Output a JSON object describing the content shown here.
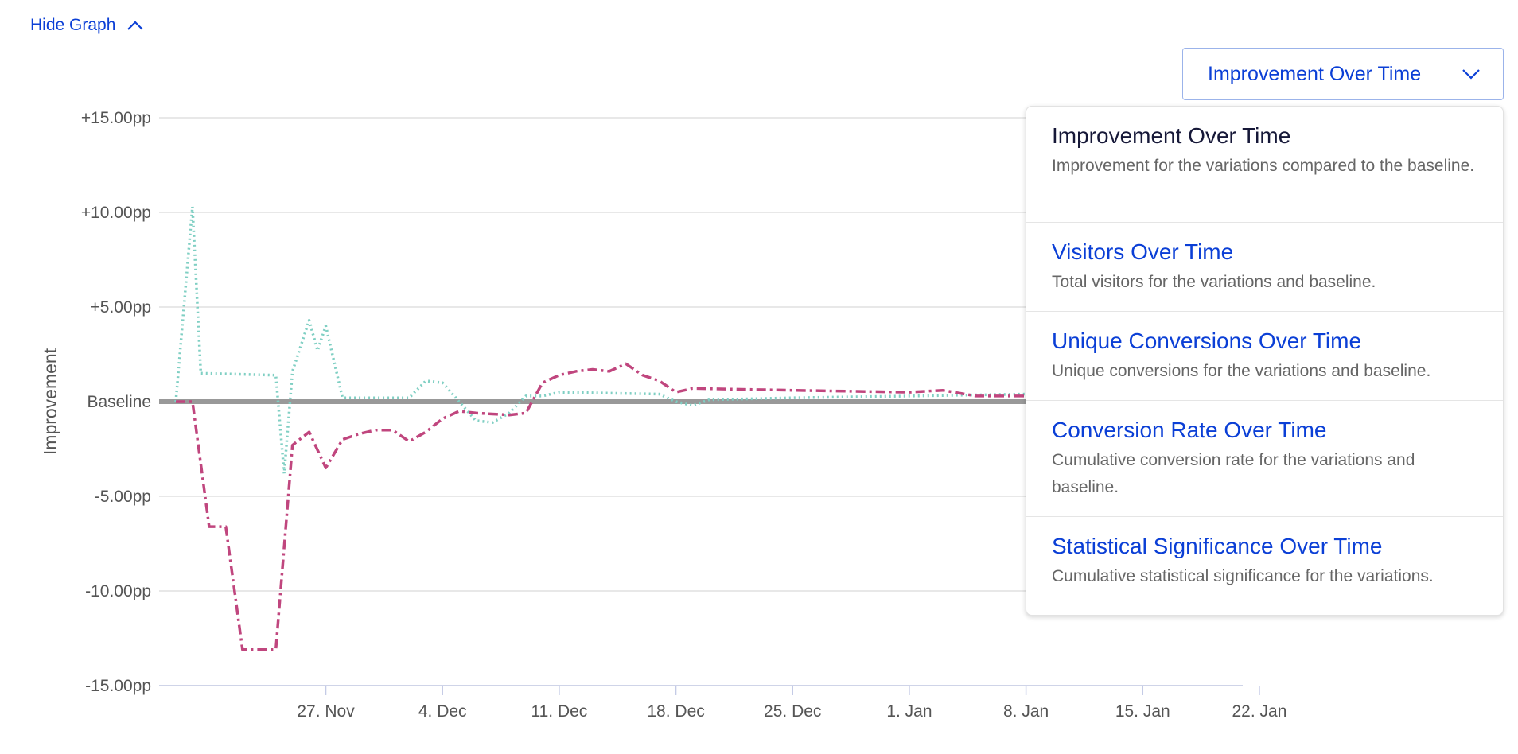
{
  "toggle": {
    "label": "Hide Graph",
    "icon": "chevron-up-icon"
  },
  "selector": {
    "value": "Improvement Over Time",
    "icon": "chevron-down-icon"
  },
  "menu": {
    "items": [
      {
        "title": "Improvement Over Time",
        "description": "Improvement for the variations compared to the baseline.",
        "selected": true
      },
      {
        "title": "Visitors Over Time",
        "description": "Total visitors for the variations and baseline.",
        "selected": false
      },
      {
        "title": "Unique Conversions Over Time",
        "description": "Unique conversions for the variations and baseline.",
        "selected": false
      },
      {
        "title": "Conversion Rate Over Time",
        "description": "Cumulative conversion rate for the variations and baseline.",
        "selected": false
      },
      {
        "title": "Statistical Significance Over Time",
        "description": "Cumulative statistical significance for the variations.",
        "selected": false
      }
    ]
  },
  "chart_data": {
    "type": "line",
    "ylabel": "Improvement",
    "xlabel": "",
    "ylim": [
      -15,
      15
    ],
    "y_ticks": [
      {
        "value": 15,
        "label": "+15.00pp"
      },
      {
        "value": 10,
        "label": "+10.00pp"
      },
      {
        "value": 5,
        "label": "+5.00pp"
      },
      {
        "value": 0,
        "label": "Baseline"
      },
      {
        "value": -5,
        "label": "-5.00pp"
      },
      {
        "value": -10,
        "label": "-10.00pp"
      },
      {
        "value": -15,
        "label": "-15.00pp"
      }
    ],
    "x_range": [
      "2023-11-17",
      "2024-01-21"
    ],
    "x_ticks": [
      {
        "date": "2023-11-27",
        "label": "27. Nov"
      },
      {
        "date": "2023-12-04",
        "label": "4. Dec"
      },
      {
        "date": "2023-12-11",
        "label": "11. Dec"
      },
      {
        "date": "2023-12-18",
        "label": "18. Dec"
      },
      {
        "date": "2023-12-25",
        "label": "25. Dec"
      },
      {
        "date": "2024-01-01",
        "label": "1. Jan"
      },
      {
        "date": "2024-01-08",
        "label": "8. Jan"
      },
      {
        "date": "2024-01-15",
        "label": "15. Jan"
      },
      {
        "date": "2024-01-22",
        "label": "22. Jan"
      }
    ],
    "grid": true,
    "baseline": {
      "value": 0,
      "color": "#999999"
    },
    "series": [
      {
        "color": "#7fcfc3",
        "dash": "dotted",
        "points": [
          [
            "2023-11-18",
            0.0
          ],
          [
            "2023-11-19",
            10.3
          ],
          [
            "2023-11-19T12",
            1.5
          ],
          [
            "2023-11-24",
            1.4
          ],
          [
            "2023-11-24T12",
            -3.8
          ],
          [
            "2023-11-25",
            1.6
          ],
          [
            "2023-11-26",
            4.3
          ],
          [
            "2023-11-26T12",
            2.7
          ],
          [
            "2023-11-27",
            4.0
          ],
          [
            "2023-11-28",
            0.2
          ],
          [
            "2023-12-02",
            0.2
          ],
          [
            "2023-12-03",
            1.1
          ],
          [
            "2023-12-04",
            1.0
          ],
          [
            "2023-12-06",
            -1.0
          ],
          [
            "2023-12-07",
            -1.1
          ],
          [
            "2023-12-08",
            -0.6
          ],
          [
            "2023-12-09",
            0.3
          ],
          [
            "2023-12-10",
            0.3
          ],
          [
            "2023-12-11",
            0.5
          ],
          [
            "2023-12-17",
            0.4
          ],
          [
            "2023-12-18",
            0.0
          ],
          [
            "2023-12-19",
            -0.2
          ],
          [
            "2023-12-20",
            0.1
          ],
          [
            "2023-12-25",
            0.2
          ],
          [
            "2024-01-01",
            0.3
          ],
          [
            "2024-01-08",
            0.4
          ]
        ]
      },
      {
        "color": "#c0467e",
        "dash": "dash-dot",
        "points": [
          [
            "2023-11-18",
            0.0
          ],
          [
            "2023-11-19",
            0.0
          ],
          [
            "2023-11-20",
            -6.6
          ],
          [
            "2023-11-21",
            -6.6
          ],
          [
            "2023-11-22",
            -13.1
          ],
          [
            "2023-11-24",
            -13.1
          ],
          [
            "2023-11-25",
            -2.3
          ],
          [
            "2023-11-26",
            -1.6
          ],
          [
            "2023-11-27",
            -3.5
          ],
          [
            "2023-11-28",
            -2.0
          ],
          [
            "2023-11-29",
            -1.7
          ],
          [
            "2023-11-30",
            -1.5
          ],
          [
            "2023-12-01",
            -1.5
          ],
          [
            "2023-12-02",
            -2.1
          ],
          [
            "2023-12-03",
            -1.6
          ],
          [
            "2023-12-04",
            -0.9
          ],
          [
            "2023-12-05",
            -0.5
          ],
          [
            "2023-12-06",
            -0.6
          ],
          [
            "2023-12-08",
            -0.7
          ],
          [
            "2023-12-09",
            -0.6
          ],
          [
            "2023-12-10",
            1.0
          ],
          [
            "2023-12-11",
            1.4
          ],
          [
            "2023-12-12",
            1.6
          ],
          [
            "2023-12-13",
            1.7
          ],
          [
            "2023-12-14",
            1.6
          ],
          [
            "2023-12-15",
            2.0
          ],
          [
            "2023-12-16",
            1.4
          ],
          [
            "2023-12-17",
            1.1
          ],
          [
            "2023-12-18",
            0.5
          ],
          [
            "2023-12-19",
            0.7
          ],
          [
            "2023-12-25",
            0.6
          ],
          [
            "2024-01-01",
            0.5
          ],
          [
            "2024-01-03",
            0.6
          ],
          [
            "2024-01-05",
            0.3
          ],
          [
            "2024-01-08",
            0.3
          ]
        ]
      }
    ]
  }
}
